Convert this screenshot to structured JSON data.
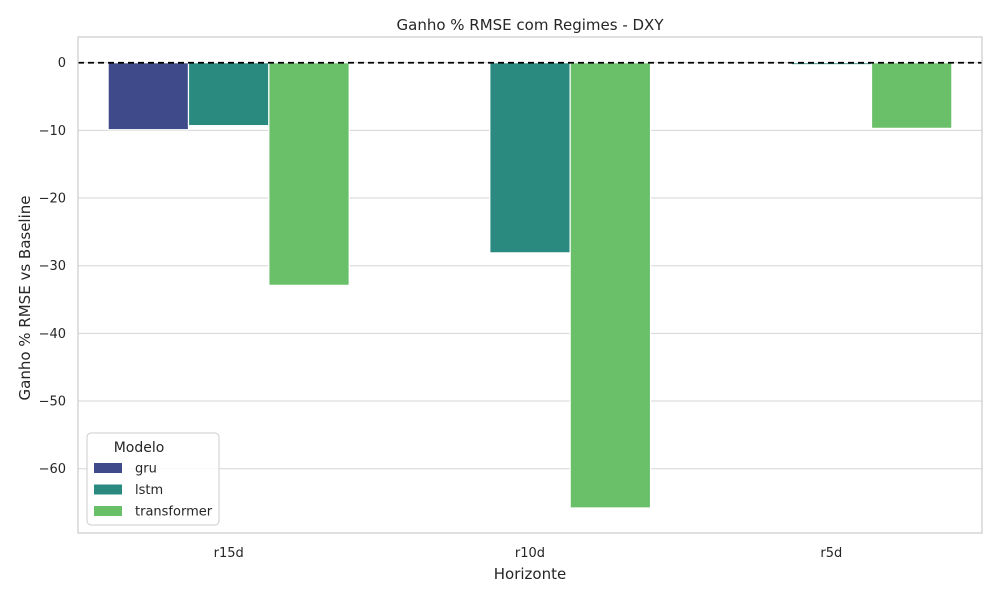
{
  "chart_data": {
    "type": "bar",
    "title": "Ganho % RMSE com Regimes - DXY",
    "xlabel": "Horizonte",
    "ylabel": "Ganho % RMSE vs Baseline",
    "categories": [
      "r15d",
      "r10d",
      "r5d"
    ],
    "series": [
      {
        "name": "gru",
        "color": "#3e4a89",
        "values": [
          -9.9,
          0.0,
          0.0
        ]
      },
      {
        "name": "lstm",
        "color": "#2a8a7f",
        "values": [
          -9.3,
          -28.1,
          -0.3
        ]
      },
      {
        "name": "transformer",
        "color": "#6abf69",
        "values": [
          -32.9,
          -65.8,
          -9.7
        ]
      }
    ],
    "ylim": [
      -69.5,
      3.8
    ],
    "yticks": [
      0,
      -10,
      -20,
      -30,
      -40,
      -50,
      -60
    ],
    "ytick_labels": [
      "0",
      "−10",
      "−20",
      "−30",
      "−40",
      "−50",
      "−60"
    ],
    "reference_line": {
      "value": 0,
      "style": "dashed",
      "color": "#000000"
    },
    "grid": "horizontal",
    "legend": {
      "title": "Modelo",
      "placement": "lower-left"
    }
  }
}
